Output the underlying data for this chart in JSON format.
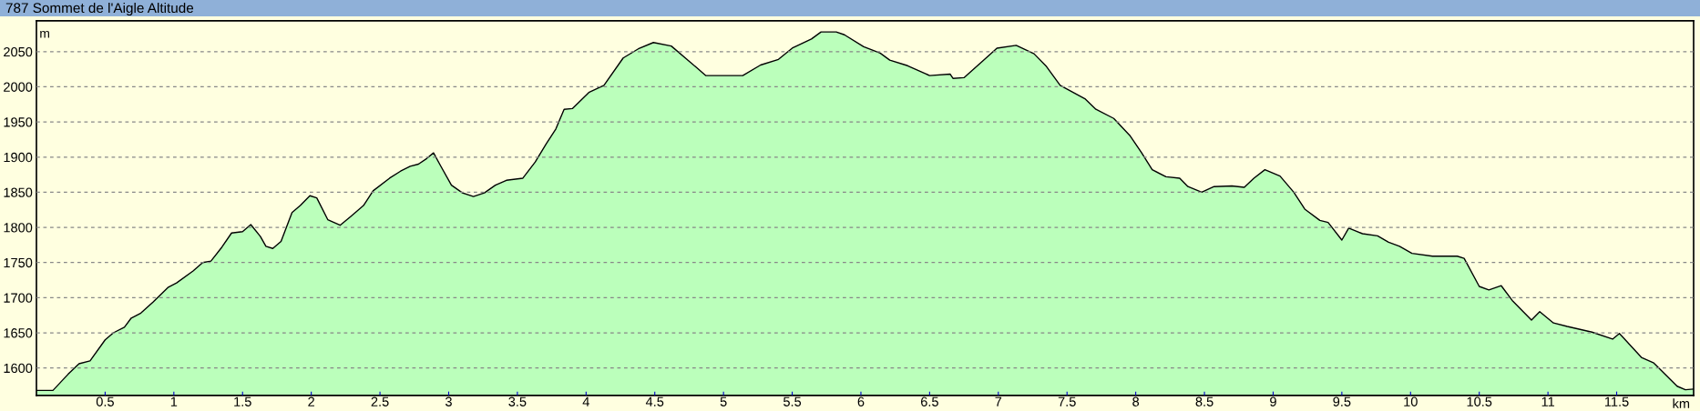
{
  "chart_data": {
    "type": "area",
    "title": "787 Sommet de l'Aigle Altitude",
    "xlabel": "km",
    "ylabel": "m",
    "xlim": [
      0,
      12.06
    ],
    "ylim": [
      1561,
      2094
    ],
    "xticks": [
      0.5,
      1,
      1.5,
      2,
      2.5,
      3,
      3.5,
      4,
      4.5,
      5,
      5.5,
      6,
      6.5,
      7,
      7.5,
      8,
      8.5,
      9,
      9.5,
      10,
      10.5,
      11,
      11.5
    ],
    "yticks": [
      1600,
      1650,
      1700,
      1750,
      1800,
      1850,
      1900,
      1950,
      2000,
      2050
    ],
    "grid": "y",
    "series": [
      {
        "color": "#bbffbb",
        "x": [
          0.0,
          0.12,
          0.23,
          0.31,
          0.39,
          0.5,
          0.56,
          0.64,
          0.69,
          0.76,
          0.85,
          0.96,
          1.02,
          1.14,
          1.21,
          1.27,
          1.35,
          1.42,
          1.5,
          1.56,
          1.63,
          1.67,
          1.72,
          1.78,
          1.86,
          1.92,
          1.99,
          2.04,
          2.12,
          2.21,
          2.29,
          2.38,
          2.45,
          2.57,
          2.65,
          2.72,
          2.78,
          2.84,
          2.89,
          2.94,
          3.02,
          3.1,
          3.18,
          3.26,
          3.34,
          3.42,
          3.54,
          3.63,
          3.71,
          3.78,
          3.84,
          3.9,
          4.02,
          4.13,
          4.27,
          4.38,
          4.49,
          4.62,
          4.8,
          4.87,
          5.01,
          5.14,
          5.27,
          5.4,
          5.5,
          5.64,
          5.71,
          5.82,
          5.88,
          6.02,
          6.14,
          6.21,
          6.34,
          6.5,
          6.65,
          6.67,
          6.75,
          6.9,
          6.99,
          7.13,
          7.26,
          7.35,
          7.45,
          7.63,
          7.71,
          7.84,
          7.96,
          8.04,
          8.12,
          8.22,
          8.32,
          8.38,
          8.48,
          8.57,
          8.7,
          8.79,
          8.86,
          8.94,
          9.05,
          9.15,
          9.23,
          9.34,
          9.4,
          9.5,
          9.55,
          9.65,
          9.76,
          9.84,
          9.92,
          10.01,
          10.16,
          10.34,
          10.39,
          10.5,
          10.57,
          10.66,
          10.74,
          10.88,
          10.94,
          11.04,
          11.14,
          11.32,
          11.47,
          11.52,
          11.68,
          11.77,
          11.94,
          12.0,
          12.06
        ],
        "values": [
          1568,
          1568,
          1591,
          1606,
          1610,
          1640,
          1650,
          1658,
          1671,
          1678,
          1694,
          1715,
          1721,
          1738,
          1750,
          1752,
          1772,
          1792,
          1794,
          1804,
          1787,
          1773,
          1770,
          1780,
          1821,
          1831,
          1845,
          1842,
          1811,
          1803,
          1816,
          1831,
          1852,
          1870,
          1880,
          1887,
          1890,
          1898,
          1906,
          1888,
          1860,
          1849,
          1844,
          1849,
          1860,
          1867,
          1870,
          1893,
          1919,
          1940,
          1968,
          1969,
          1992,
          2002,
          2041,
          2054,
          2063,
          2058,
          2028,
          2016,
          2016,
          2016,
          2031,
          2039,
          2055,
          2068,
          2078,
          2078,
          2074,
          2057,
          2048,
          2038,
          2030,
          2016,
          2018,
          2012,
          2013,
          2039,
          2055,
          2059,
          2047,
          2029,
          2002,
          1983,
          1968,
          1955,
          1930,
          1907,
          1882,
          1872,
          1870,
          1858,
          1850,
          1858,
          1859,
          1857,
          1870,
          1882,
          1873,
          1850,
          1826,
          1810,
          1807,
          1782,
          1799,
          1791,
          1788,
          1779,
          1773,
          1763,
          1759,
          1759,
          1756,
          1716,
          1711,
          1717,
          1696,
          1668,
          1680,
          1664,
          1659,
          1651,
          1641,
          1649,
          1615,
          1607,
          1574,
          1569,
          1570
        ]
      }
    ]
  }
}
